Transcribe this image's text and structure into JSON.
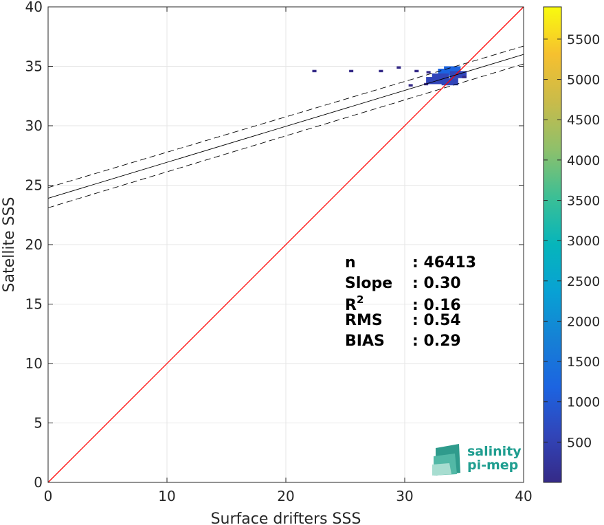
{
  "chart_data": {
    "type": "heatmap",
    "title": "",
    "xlabel": "Surface drifters SSS",
    "ylabel": "Satellite SSS",
    "xlim": [
      0,
      40
    ],
    "ylim": [
      0,
      40
    ],
    "xticks": [
      0,
      10,
      20,
      30,
      40
    ],
    "yticks": [
      0,
      5,
      10,
      15,
      20,
      25,
      30,
      35,
      40
    ],
    "grid": true,
    "colormap": "parula",
    "colorbar": {
      "range": [
        0,
        5900
      ],
      "ticks": [
        500,
        1000,
        1500,
        2000,
        2500,
        3000,
        3500,
        4000,
        4500,
        5000,
        5500
      ]
    },
    "density_points": [
      {
        "x": 34.0,
        "y": 34.7,
        "count": 1200
      },
      {
        "x": 33.5,
        "y": 34.5,
        "count": 900
      },
      {
        "x": 34.5,
        "y": 34.3,
        "count": 800
      },
      {
        "x": 33.0,
        "y": 34.1,
        "count": 500
      },
      {
        "x": 33.8,
        "y": 33.7,
        "count": 600
      },
      {
        "x": 32.5,
        "y": 33.8,
        "count": 300
      },
      {
        "x": 31.8,
        "y": 33.5,
        "count": 150
      },
      {
        "x": 32.0,
        "y": 34.5,
        "count": 80
      },
      {
        "x": 31.0,
        "y": 34.6,
        "count": 30
      },
      {
        "x": 30.5,
        "y": 33.4,
        "count": 20
      },
      {
        "x": 28.0,
        "y": 34.6,
        "count": 10
      },
      {
        "x": 25.5,
        "y": 34.6,
        "count": 10
      },
      {
        "x": 22.4,
        "y": 34.6,
        "count": 10
      },
      {
        "x": 29.5,
        "y": 34.9,
        "count": 10
      },
      {
        "x": 35.0,
        "y": 34.1,
        "count": 40
      }
    ],
    "lines": [
      {
        "style": "identity",
        "color": "#ff0000",
        "x": [
          0,
          40
        ],
        "y": [
          0,
          40
        ]
      },
      {
        "style": "fit",
        "color": "#000000",
        "x": [
          0,
          40
        ],
        "y": [
          23.9,
          36.0
        ]
      },
      {
        "style": "fit-upper",
        "color": "#000000",
        "x": [
          0,
          40
        ],
        "y": [
          24.8,
          36.7
        ]
      },
      {
        "style": "fit-lower",
        "color": "#000000",
        "x": [
          0,
          40
        ],
        "y": [
          23.1,
          35.2
        ]
      }
    ],
    "stats": [
      {
        "label": "n",
        "value": ": 46413"
      },
      {
        "label": "Slope",
        "value": ": 0.30"
      },
      {
        "label": "R",
        "sup": "2",
        "value": ": 0.16"
      },
      {
        "label": "RMS",
        "value": ": 0.54"
      },
      {
        "label": "BIAS",
        "value": ": 0.29"
      }
    ]
  },
  "logo": {
    "line1": "salinity",
    "line2": "pi-mep"
  }
}
